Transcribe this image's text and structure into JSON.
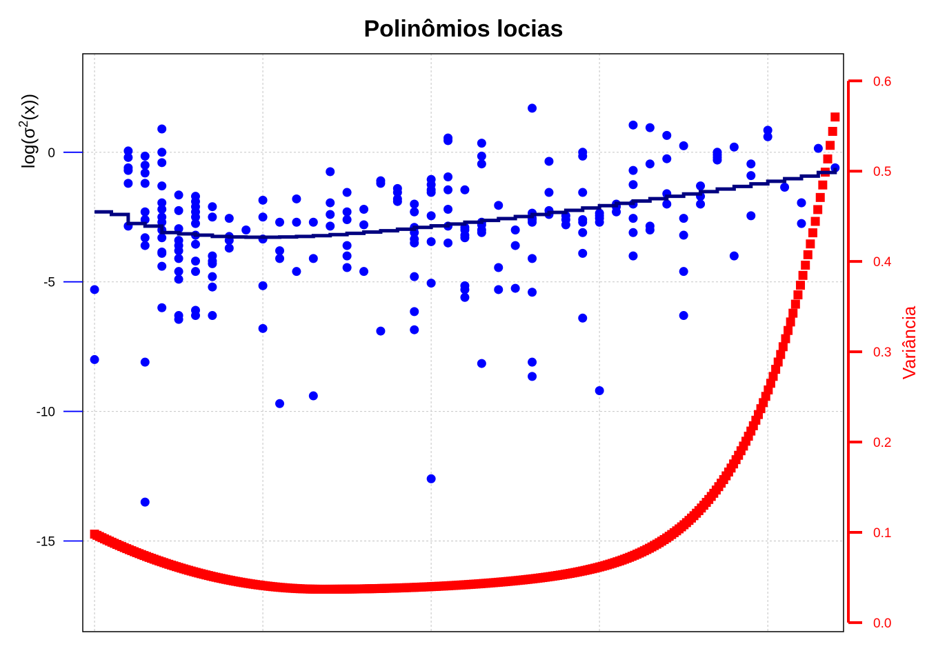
{
  "chart_data": {
    "type": "scatter",
    "title": "Polinômios locias",
    "ylabel_left": {
      "prefix": "log(σ",
      "sup": "2",
      "suffix": "(x))"
    },
    "ylabel_right": "Variância",
    "xlim": [
      0.3,
      45.5
    ],
    "ylim_left": [
      -18.5,
      3.8
    ],
    "ylim_right": [
      -0.01,
      0.63
    ],
    "left_ticks": [
      0,
      -5,
      -10,
      -15
    ],
    "right_ticks": [
      "0.0",
      "0.1",
      "0.2",
      "0.3",
      "0.4",
      "0.5",
      "0.6"
    ],
    "x_gridlines": [
      1,
      11,
      21,
      31,
      41
    ],
    "grid": true,
    "colors": {
      "points": "#0000ff",
      "fit": "#000080",
      "variance": "#ff0000",
      "grid": "#cccccc",
      "axis_left": "#0000ff",
      "axis_right": "#ff0000"
    },
    "series": [
      {
        "axis": "left",
        "style": "points",
        "x": [
          1,
          1,
          3,
          3,
          3,
          3,
          3,
          3,
          4,
          4,
          4,
          4,
          4,
          4,
          4,
          4,
          4,
          4,
          5,
          5,
          5,
          5,
          5,
          5,
          5,
          5,
          5,
          5,
          5,
          5,
          5,
          5,
          6,
          6,
          6,
          6,
          6,
          6,
          6,
          6,
          6,
          6,
          6,
          7,
          7,
          7,
          7,
          7,
          7,
          7,
          7,
          7,
          7,
          7,
          7,
          8,
          8,
          8,
          8,
          8,
          8,
          8,
          8,
          9,
          9,
          9,
          9,
          10,
          11,
          11,
          11,
          11,
          11,
          12,
          12,
          12,
          12,
          13,
          13,
          13,
          14,
          14,
          14,
          15,
          15,
          15,
          15,
          16,
          16,
          16,
          16,
          16,
          16,
          17,
          17,
          17,
          18,
          18,
          18,
          19,
          19,
          19,
          19,
          20,
          20,
          20,
          20,
          20,
          20,
          20,
          20,
          20,
          21,
          21,
          21,
          21,
          21,
          21,
          21,
          21,
          22,
          22,
          22,
          22,
          22,
          22,
          22,
          23,
          23,
          23,
          23,
          23,
          23,
          23,
          23,
          24,
          24,
          24,
          24,
          24,
          24,
          24,
          24,
          25,
          25,
          25,
          26,
          26,
          26,
          27,
          27,
          27,
          27,
          27,
          27,
          27,
          27,
          27,
          28,
          28,
          28,
          28,
          29,
          29,
          29,
          30,
          30,
          30,
          30,
          30,
          30,
          30,
          30,
          31,
          31,
          31,
          31,
          31,
          32,
          32,
          32,
          33,
          33,
          33,
          33,
          33,
          33,
          33,
          34,
          34,
          34,
          34,
          35,
          35,
          35,
          35,
          36,
          36,
          36,
          36,
          36,
          37,
          37,
          37,
          38,
          38,
          38,
          38,
          39,
          39,
          40,
          40,
          40,
          41,
          41,
          42,
          43,
          43,
          43,
          44,
          45
        ],
        "y": [
          -8.0,
          -5.3,
          0.05,
          -0.2,
          -0.6,
          -0.7,
          -1.2,
          -2.85,
          -0.15,
          -0.5,
          -0.8,
          -1.2,
          -2.3,
          -2.6,
          -3.3,
          -3.6,
          -8.1,
          -13.5,
          0.9,
          0.0,
          -0.4,
          -1.3,
          -1.95,
          -2.2,
          -2.5,
          -2.7,
          -3.0,
          -3.3,
          -3.9,
          -4.4,
          -6.0,
          -3.85,
          -1.65,
          -2.25,
          -2.95,
          -3.4,
          -3.6,
          -3.8,
          -4.1,
          -4.6,
          -4.9,
          -6.3,
          -6.45,
          -1.7,
          -1.9,
          -2.1,
          -2.3,
          -2.5,
          -2.75,
          -3.2,
          -3.55,
          -4.2,
          -4.6,
          -6.3,
          -6.1,
          -2.1,
          -2.5,
          -4.0,
          -4.2,
          -6.3,
          -4.3,
          -4.8,
          -5.2,
          -2.55,
          -3.25,
          -3.4,
          -3.7,
          -3.0,
          -1.85,
          -2.5,
          -3.35,
          -5.15,
          -6.8,
          -2.7,
          -3.8,
          -4.1,
          -9.7,
          -1.8,
          -2.7,
          -4.6,
          -2.7,
          -4.1,
          -9.4,
          -0.75,
          -1.95,
          -2.4,
          -2.85,
          -1.55,
          -2.3,
          -2.6,
          -3.6,
          -4.0,
          -4.45,
          -2.2,
          -2.8,
          -4.6,
          -1.1,
          -1.2,
          -6.9,
          -1.4,
          -1.55,
          -1.8,
          -1.9,
          -2.0,
          -2.9,
          -3.5,
          -4.8,
          -6.15,
          -6.85,
          -3.35,
          -2.3,
          -3.1,
          -1.05,
          -1.25,
          -1.45,
          -1.55,
          -2.45,
          -3.45,
          -5.05,
          -12.6,
          0.55,
          0.45,
          -0.95,
          -1.45,
          -2.2,
          -2.85,
          -3.5,
          -1.45,
          -5.15,
          -5.3,
          -5.6,
          -2.9,
          -3.0,
          -3.2,
          -3.3,
          -2.8,
          -8.15,
          -0.15,
          -0.45,
          0.35,
          -2.7,
          -3.0,
          -3.1,
          -2.05,
          -4.45,
          -5.3,
          -3.0,
          -3.6,
          -5.25,
          1.7,
          -2.55,
          -2.7,
          -5.4,
          -8.1,
          -8.65,
          -4.1,
          -2.35,
          -2.6,
          -0.35,
          -1.55,
          -2.25,
          -2.4,
          -2.45,
          -2.8,
          -2.6,
          0.0,
          -0.15,
          -1.55,
          -2.6,
          -2.7,
          -3.1,
          -3.9,
          -6.4,
          -9.2,
          -2.35,
          -2.45,
          -2.55,
          -2.7,
          -2.3,
          -2.1,
          -2.0,
          1.05,
          -0.7,
          -1.25,
          -2.55,
          -3.1,
          -4.0,
          -2.0,
          0.95,
          -0.45,
          -2.85,
          -3.0,
          0.65,
          -0.25,
          -1.6,
          -2.0,
          0.25,
          -2.55,
          -3.2,
          -4.6,
          -6.3,
          -1.3,
          -2.0,
          -1.7,
          0.0,
          -0.1,
          -0.2,
          -0.3,
          0.2,
          -4.0,
          -0.45,
          -0.9,
          -2.45,
          0.85,
          0.6,
          -1.35,
          -1.95,
          -2.75,
          -1.95,
          0.15,
          -0.6
        ]
      },
      {
        "axis": "left",
        "style": "step-line",
        "x": [
          1,
          2,
          3,
          4,
          5,
          6,
          7,
          8,
          9,
          10,
          11,
          12,
          13,
          14,
          15,
          16,
          17,
          18,
          19,
          20,
          21,
          22,
          23,
          24,
          25,
          26,
          27,
          28,
          29,
          30,
          31,
          32,
          33,
          34,
          35,
          36,
          37,
          38,
          39,
          40,
          41,
          42,
          43,
          44,
          45
        ],
        "y": [
          -2.3,
          -2.4,
          -2.75,
          -2.85,
          -3.1,
          -3.15,
          -3.2,
          -3.25,
          -3.27,
          -3.28,
          -3.28,
          -3.27,
          -3.25,
          -3.22,
          -3.18,
          -3.13,
          -3.08,
          -3.03,
          -2.97,
          -2.9,
          -2.84,
          -2.77,
          -2.7,
          -2.63,
          -2.56,
          -2.48,
          -2.4,
          -2.32,
          -2.24,
          -2.15,
          -2.06,
          -1.97,
          -1.88,
          -1.79,
          -1.7,
          -1.61,
          -1.52,
          -1.42,
          -1.32,
          -1.22,
          -1.12,
          -1.02,
          -0.92,
          -0.78,
          -0.6
        ]
      },
      {
        "axis": "right",
        "style": "square-markers",
        "x_range": [
          1,
          45
        ],
        "count": 300,
        "min_x": 14.5,
        "min_y": 0.037,
        "start_y": 0.098,
        "end_y": 0.56
      }
    ]
  }
}
